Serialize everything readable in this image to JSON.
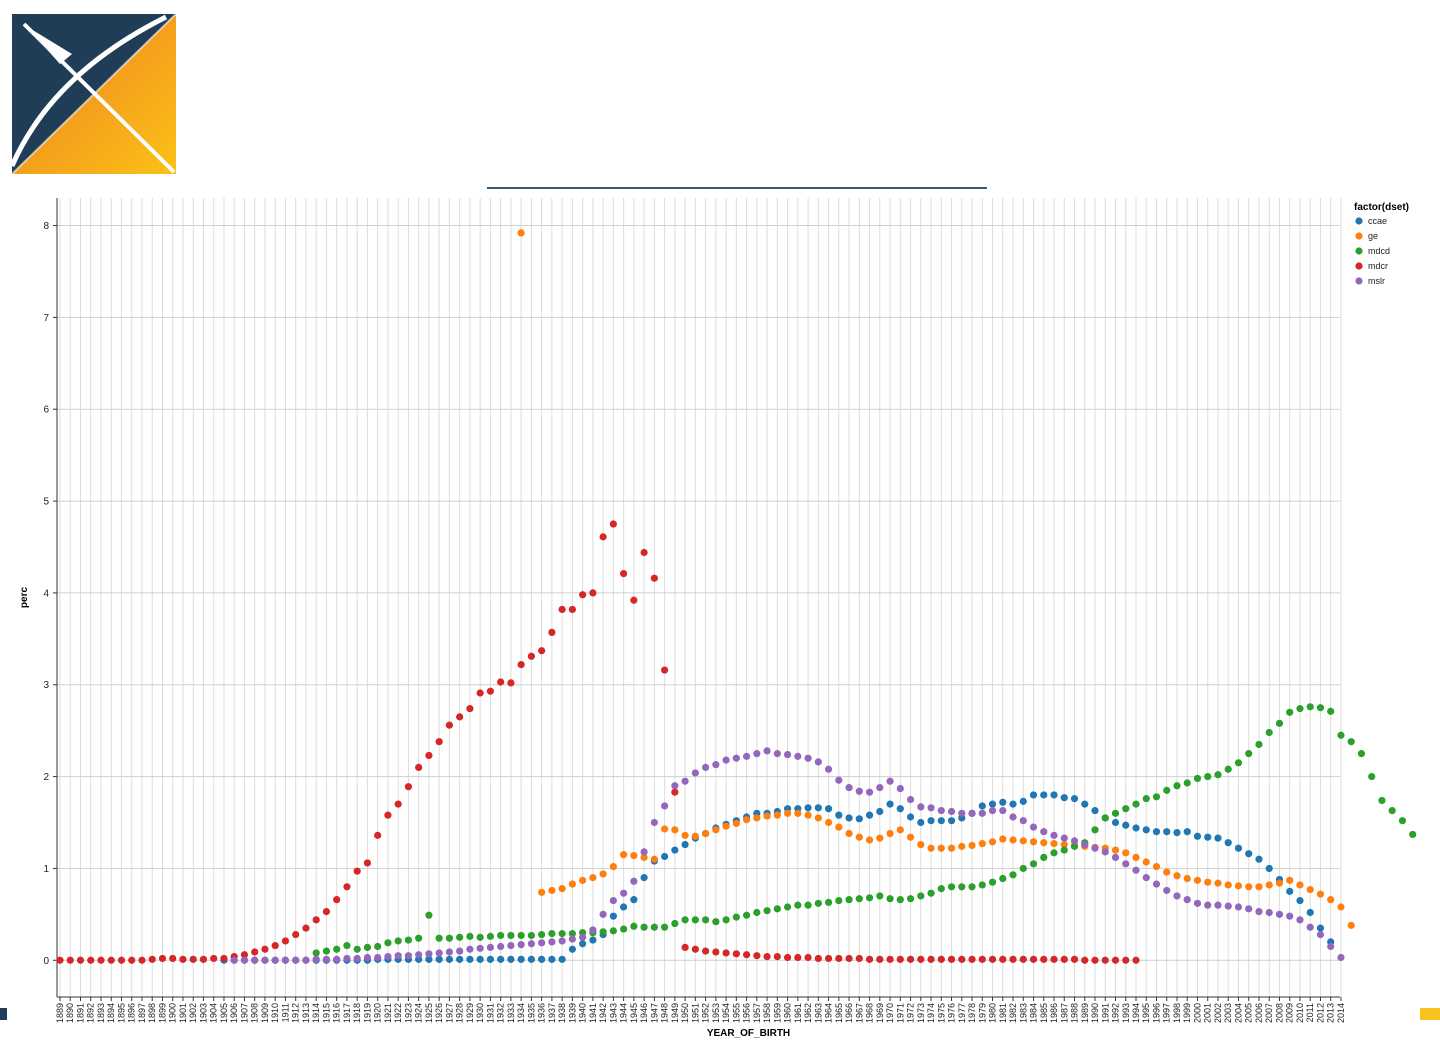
{
  "chart_data": {
    "type": "scatter",
    "xlabel": "YEAR_OF_BIRTH",
    "ylabel": "perc",
    "ylim": [
      -0.4,
      8.3
    ],
    "yticks": [
      0,
      1,
      2,
      3,
      4,
      5,
      6,
      7,
      8
    ],
    "x_range": [
      1889,
      2014
    ],
    "grid": true,
    "legend": {
      "title": "factor(dset)",
      "position": "top-right"
    },
    "series": [
      {
        "name": "ccae",
        "color": "#1f77b4",
        "x_start": 1905,
        "values": [
          0.0,
          0.0,
          0.0,
          0.0,
          0.0,
          0.0,
          0.0,
          0.0,
          0.0,
          0.0,
          0.0,
          0.0,
          0.0,
          0.0,
          0.0,
          0.01,
          0.01,
          0.01,
          0.01,
          0.01,
          0.01,
          0.01,
          0.01,
          0.01,
          0.01,
          0.01,
          0.01,
          0.01,
          0.01,
          0.01,
          0.01,
          0.01,
          0.01,
          0.01,
          0.12,
          0.18,
          0.22,
          0.28,
          0.48,
          0.58,
          0.66,
          0.9,
          1.08,
          1.13,
          1.2,
          1.26,
          1.33,
          1.38,
          1.44,
          1.48,
          1.52,
          1.56,
          1.6,
          1.6,
          1.62,
          1.65,
          1.65,
          1.66,
          1.66,
          1.65,
          1.58,
          1.55,
          1.54,
          1.58,
          1.62,
          1.7,
          1.65,
          1.56,
          1.5,
          1.52,
          1.52,
          1.52,
          1.55,
          1.6,
          1.68,
          1.7,
          1.72,
          1.7,
          1.73,
          1.8,
          1.8,
          1.8,
          1.77,
          1.76,
          1.7,
          1.63,
          1.55,
          1.5,
          1.47,
          1.44,
          1.42,
          1.4,
          1.4,
          1.39,
          1.4,
          1.35,
          1.34,
          1.33,
          1.28,
          1.22,
          1.16,
          1.1,
          1.0,
          0.88,
          0.75,
          0.65,
          0.52,
          0.35,
          0.2
        ]
      },
      {
        "name": "ge",
        "color": "#ff7f0e",
        "x_start": 1934,
        "values": [
          7.92,
          null,
          0.74,
          0.76,
          0.78,
          0.83,
          0.87,
          0.9,
          0.94,
          1.02,
          1.15,
          1.14,
          1.12,
          1.1,
          1.43,
          1.42,
          1.36,
          1.35,
          1.38,
          1.42,
          1.46,
          1.49,
          1.53,
          1.55,
          1.57,
          1.58,
          1.6,
          1.6,
          1.58,
          1.55,
          1.5,
          1.45,
          1.38,
          1.34,
          1.31,
          1.33,
          1.38,
          1.42,
          1.34,
          1.26,
          1.22,
          1.22,
          1.22,
          1.24,
          1.25,
          1.27,
          1.29,
          1.32,
          1.31,
          1.3,
          1.29,
          1.28,
          1.27,
          1.26,
          1.25,
          1.24,
          1.23,
          1.22,
          1.2,
          1.17,
          1.12,
          1.07,
          1.02,
          0.96,
          0.92,
          0.89,
          0.87,
          0.85,
          0.84,
          0.82,
          0.81,
          0.8,
          0.8,
          0.82,
          0.84,
          0.87,
          0.82,
          0.77,
          0.72,
          0.66,
          0.58,
          0.38
        ]
      },
      {
        "name": "mdcd",
        "color": "#2ca02c",
        "x_start": 1914,
        "values": [
          0.08,
          0.1,
          0.12,
          0.16,
          0.12,
          0.14,
          0.15,
          0.19,
          0.21,
          0.22,
          0.24,
          0.49,
          0.24,
          0.24,
          0.25,
          0.26,
          0.25,
          0.26,
          0.27,
          0.27,
          0.27,
          0.27,
          0.28,
          0.29,
          0.29,
          0.29,
          0.3,
          0.3,
          0.31,
          0.32,
          0.34,
          0.37,
          0.36,
          0.36,
          0.36,
          0.4,
          0.44,
          0.44,
          0.44,
          0.42,
          0.44,
          0.47,
          0.49,
          0.52,
          0.54,
          0.56,
          0.58,
          0.6,
          0.6,
          0.62,
          0.63,
          0.65,
          0.66,
          0.67,
          0.68,
          0.7,
          0.67,
          0.66,
          0.67,
          0.7,
          0.73,
          0.78,
          0.8,
          0.8,
          0.8,
          0.82,
          0.85,
          0.89,
          0.93,
          1.0,
          1.05,
          1.12,
          1.17,
          1.2,
          1.24,
          1.28,
          1.42,
          1.55,
          1.6,
          1.65,
          1.7,
          1.76,
          1.78,
          1.85,
          1.9,
          1.93,
          1.98,
          2.0,
          2.02,
          2.08,
          2.15,
          2.25,
          2.35,
          2.48,
          2.58,
          2.7,
          2.74,
          2.76,
          2.75,
          2.71,
          2.45,
          2.38,
          2.25,
          2.0,
          1.74,
          1.63,
          1.52,
          1.37
        ]
      },
      {
        "name": "mdcr",
        "color": "#d62728",
        "x_start": 1889,
        "values": [
          0.0,
          0.0,
          0.0,
          0.0,
          0.0,
          0.0,
          0.0,
          0.0,
          0.0,
          0.01,
          0.02,
          0.02,
          0.01,
          0.01,
          0.01,
          0.02,
          0.02,
          0.04,
          0.06,
          0.09,
          0.12,
          0.16,
          0.21,
          0.28,
          0.35,
          0.44,
          0.53,
          0.66,
          0.8,
          0.97,
          1.06,
          1.36,
          1.58,
          1.7,
          1.89,
          2.1,
          2.23,
          2.38,
          2.56,
          2.65,
          2.74,
          2.91,
          2.93,
          3.03,
          3.02,
          3.22,
          3.31,
          3.37,
          3.57,
          3.82,
          3.82,
          3.98,
          4.0,
          4.61,
          4.75,
          4.21,
          3.92,
          4.44,
          4.16,
          3.16,
          1.83,
          0.14,
          0.12,
          0.1,
          0.09,
          0.08,
          0.07,
          0.06,
          0.05,
          0.04,
          0.04,
          0.03,
          0.03,
          0.03,
          0.02,
          0.02,
          0.02,
          0.02,
          0.02,
          0.01,
          0.01,
          0.01,
          0.01,
          0.01,
          0.01,
          0.01,
          0.01,
          0.01,
          0.01,
          0.01,
          0.01,
          0.01,
          0.01,
          0.01,
          0.01,
          0.01,
          0.01,
          0.01,
          0.01,
          0.01,
          0.0,
          0.0,
          0.0,
          0.0,
          0.0,
          0.0
        ]
      },
      {
        "name": "mslr",
        "color": "#9467bd",
        "x_start": 1906,
        "values": [
          0.0,
          0.0,
          0.0,
          0.0,
          0.0,
          0.0,
          0.0,
          0.0,
          0.01,
          0.01,
          0.01,
          0.02,
          0.02,
          0.03,
          0.03,
          0.04,
          0.05,
          0.05,
          0.06,
          0.07,
          0.08,
          0.09,
          0.1,
          0.12,
          0.13,
          0.14,
          0.15,
          0.16,
          0.17,
          0.18,
          0.19,
          0.2,
          0.21,
          0.23,
          0.25,
          0.33,
          0.5,
          0.65,
          0.73,
          0.86,
          1.18,
          1.5,
          1.68,
          1.9,
          1.95,
          2.04,
          2.1,
          2.13,
          2.18,
          2.2,
          2.22,
          2.25,
          2.28,
          2.25,
          2.24,
          2.22,
          2.2,
          2.16,
          2.08,
          1.96,
          1.88,
          1.84,
          1.83,
          1.88,
          1.95,
          1.87,
          1.75,
          1.67,
          1.66,
          1.63,
          1.62,
          1.6,
          1.6,
          1.6,
          1.63,
          1.63,
          1.56,
          1.52,
          1.45,
          1.4,
          1.36,
          1.33,
          1.3,
          1.26,
          1.22,
          1.18,
          1.12,
          1.05,
          0.98,
          0.9,
          0.83,
          0.76,
          0.7,
          0.66,
          0.62,
          0.6,
          0.6,
          0.59,
          0.58,
          0.56,
          0.53,
          0.52,
          0.5,
          0.48,
          0.44,
          0.36,
          0.28,
          0.15,
          0.03
        ]
      }
    ]
  }
}
